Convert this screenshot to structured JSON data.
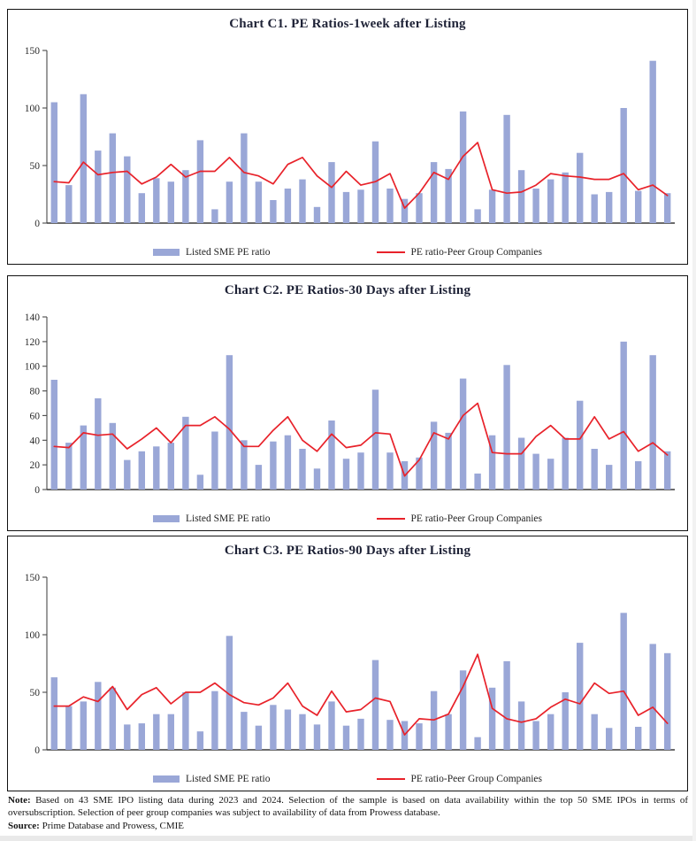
{
  "legend": {
    "bars": "Listed SME PE ratio",
    "line": "PE ratio-Peer Group Companies"
  },
  "colors": {
    "bar": "#9aa7d7",
    "line": "#e8222a",
    "axis": "#4a4a4a",
    "title": "#1e2236"
  },
  "note": {
    "label": "Note:",
    "body": " Based on 43 SME IPO listing data during 2023 and 2024. Selection of the sample is based on data availability within the top 50 SME IPOs in terms of oversubscription. Selection of peer group companies was subject to availability of data from Prowess database.",
    "source_label": "Source:",
    "source_body": " Prime Database and Prowess, CMIE"
  },
  "chart_data": [
    {
      "type": "bar",
      "title": "Chart C1. PE Ratios-1week after Listing",
      "xlabel": "",
      "ylabel": "",
      "ylim": [
        0,
        150
      ],
      "yticks": [
        0,
        50,
        100,
        150
      ],
      "n_points": 43,
      "grid": false,
      "legend_position": "bottom",
      "series": [
        {
          "name": "Listed SME PE ratio",
          "type": "bar",
          "values": [
            105,
            33,
            112,
            63,
            78,
            58,
            26,
            39,
            36,
            46,
            72,
            12,
            36,
            78,
            36,
            20,
            30,
            38,
            14,
            53,
            27,
            29,
            71,
            30,
            21,
            26,
            53,
            47,
            97,
            12,
            29,
            94,
            46,
            30,
            38,
            44,
            61,
            25,
            27,
            100,
            28,
            141,
            26
          ]
        },
        {
          "name": "PE ratio-Peer Group Companies",
          "type": "line",
          "values": [
            36,
            35,
            53,
            42,
            44,
            45,
            34,
            40,
            51,
            40,
            45,
            45,
            57,
            44,
            41,
            34,
            51,
            57,
            41,
            31,
            45,
            33,
            36,
            43,
            13,
            26,
            44,
            38,
            58,
            70,
            29,
            26,
            27,
            33,
            43,
            41,
            40,
            38,
            38,
            43,
            29,
            33,
            24
          ]
        }
      ]
    },
    {
      "type": "bar",
      "title": "Chart C2. PE Ratios-30 Days after Listing",
      "xlabel": "",
      "ylabel": "",
      "ylim": [
        0,
        140
      ],
      "yticks": [
        0,
        20,
        40,
        60,
        80,
        100,
        120,
        140
      ],
      "n_points": 43,
      "grid": false,
      "legend_position": "bottom",
      "series": [
        {
          "name": "Listed SME PE ratio",
          "type": "bar",
          "values": [
            89,
            38,
            52,
            74,
            54,
            24,
            31,
            35,
            38,
            59,
            12,
            47,
            109,
            40,
            20,
            39,
            44,
            33,
            17,
            56,
            25,
            30,
            81,
            30,
            23,
            26,
            55,
            46,
            90,
            13,
            44,
            101,
            42,
            29,
            25,
            42,
            72,
            33,
            20,
            120,
            23,
            109,
            31
          ]
        },
        {
          "name": "PE ratio-Peer Group Companies",
          "type": "line",
          "values": [
            35,
            34,
            46,
            44,
            45,
            33,
            41,
            50,
            38,
            52,
            52,
            59,
            49,
            35,
            35,
            48,
            59,
            40,
            31,
            45,
            34,
            36,
            46,
            45,
            11,
            24,
            46,
            41,
            60,
            70,
            30,
            29,
            29,
            43,
            52,
            41,
            41,
            59,
            41,
            47,
            31,
            38,
            28
          ]
        }
      ]
    },
    {
      "type": "bar",
      "title": "Chart C3. PE Ratios-90 Days after Listing",
      "xlabel": "",
      "ylabel": "",
      "ylim": [
        0,
        150
      ],
      "yticks": [
        0,
        50,
        100,
        150
      ],
      "n_points": 43,
      "grid": false,
      "legend_position": "bottom",
      "series": [
        {
          "name": "Listed SME PE ratio",
          "type": "bar",
          "values": [
            63,
            38,
            42,
            59,
            54,
            22,
            23,
            31,
            31,
            50,
            16,
            51,
            99,
            33,
            21,
            39,
            35,
            31,
            22,
            42,
            21,
            27,
            78,
            26,
            25,
            23,
            51,
            31,
            69,
            11,
            54,
            77,
            42,
            25,
            31,
            50,
            93,
            31,
            19,
            119,
            20,
            92,
            84
          ]
        },
        {
          "name": "PE ratio-Peer Group Companies",
          "type": "line",
          "values": [
            38,
            38,
            46,
            42,
            55,
            35,
            48,
            54,
            40,
            50,
            50,
            58,
            48,
            41,
            39,
            45,
            58,
            38,
            30,
            51,
            33,
            35,
            45,
            42,
            13,
            27,
            26,
            31,
            55,
            83,
            36,
            27,
            24,
            27,
            37,
            44,
            40,
            58,
            49,
            51,
            30,
            37,
            23
          ]
        }
      ]
    }
  ]
}
